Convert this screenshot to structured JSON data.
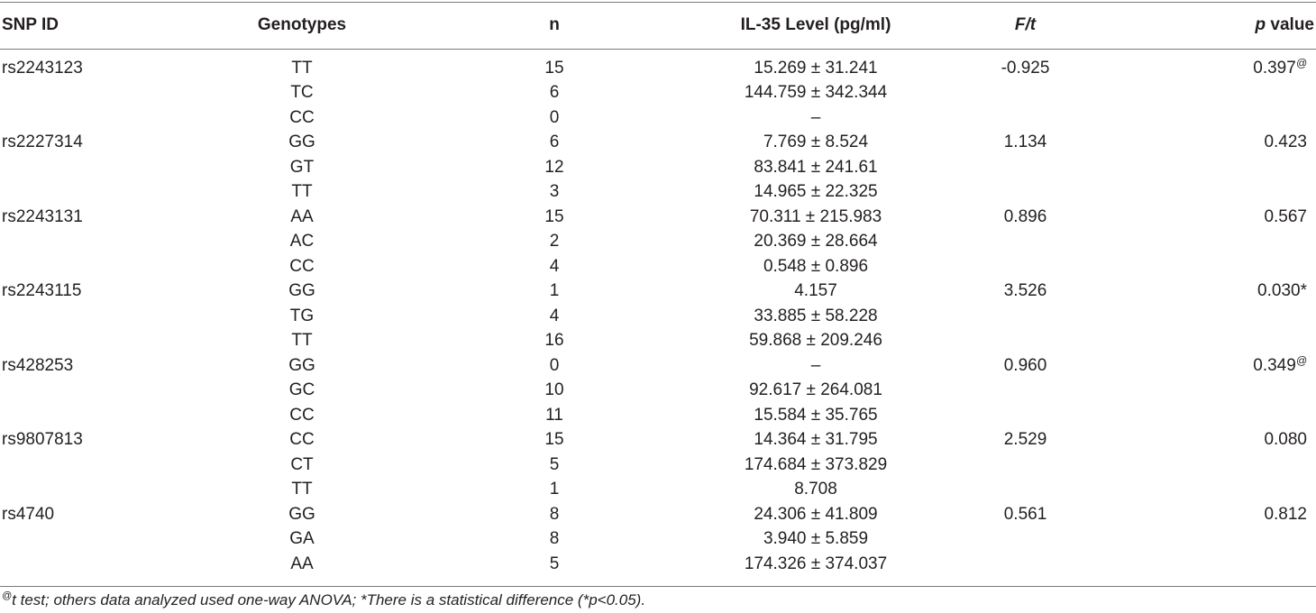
{
  "table": {
    "headers": {
      "snp_id": "SNP ID",
      "genotypes": "Genotypes",
      "n": "n",
      "il35": "IL-35 Level (pg/ml)",
      "ft": "F/t",
      "p_italic": "p",
      "p_rest": " value"
    },
    "groups": [
      {
        "snp": "rs2243123",
        "f": "-0.925",
        "p": "0.397",
        "p_mark": "@",
        "rows": [
          {
            "genotype": "TT",
            "n": "15",
            "il35": "15.269 ± 31.241"
          },
          {
            "genotype": "TC",
            "n": "6",
            "il35": "144.759 ± 342.344"
          },
          {
            "genotype": "CC",
            "n": "0",
            "il35": "–"
          }
        ]
      },
      {
        "snp": "rs2227314",
        "f": "1.134",
        "p": "0.423",
        "p_mark": "",
        "rows": [
          {
            "genotype": "GG",
            "n": "6",
            "il35": "7.769 ± 8.524"
          },
          {
            "genotype": "GT",
            "n": "12",
            "il35": "83.841 ± 241.61"
          },
          {
            "genotype": "TT",
            "n": "3",
            "il35": "14.965 ± 22.325"
          }
        ]
      },
      {
        "snp": "rs2243131",
        "f": "0.896",
        "p": "0.567",
        "p_mark": "",
        "rows": [
          {
            "genotype": "AA",
            "n": "15",
            "il35": "70.311 ± 215.983"
          },
          {
            "genotype": "AC",
            "n": "2",
            "il35": "20.369 ± 28.664"
          },
          {
            "genotype": "CC",
            "n": "4",
            "il35": "0.548 ± 0.896"
          }
        ]
      },
      {
        "snp": "rs2243115",
        "f": "3.526",
        "p": "0.030*",
        "p_mark": "",
        "rows": [
          {
            "genotype": "GG",
            "n": "1",
            "il35": "4.157"
          },
          {
            "genotype": "TG",
            "n": "4",
            "il35": "33.885 ± 58.228"
          },
          {
            "genotype": "TT",
            "n": "16",
            "il35": "59.868 ± 209.246"
          }
        ]
      },
      {
        "snp": "rs428253",
        "f": "0.960",
        "p": "0.349",
        "p_mark": "@",
        "rows": [
          {
            "genotype": "GG",
            "n": "0",
            "il35": "–"
          },
          {
            "genotype": "GC",
            "n": "10",
            "il35": "92.617 ± 264.081"
          },
          {
            "genotype": "CC",
            "n": "11",
            "il35": "15.584 ± 35.765"
          }
        ]
      },
      {
        "snp": "rs9807813",
        "f": "2.529",
        "p": "0.080",
        "p_mark": "",
        "rows": [
          {
            "genotype": "CC",
            "n": "15",
            "il35": "14.364 ± 31.795"
          },
          {
            "genotype": "CT",
            "n": "5",
            "il35": "174.684 ± 373.829"
          },
          {
            "genotype": "TT",
            "n": "1",
            "il35": "8.708"
          }
        ]
      },
      {
        "snp": "rs4740",
        "f": "0.561",
        "p": "0.812",
        "p_mark": "",
        "rows": [
          {
            "genotype": "GG",
            "n": "8",
            "il35": "24.306 ± 41.809"
          },
          {
            "genotype": "GA",
            "n": "8",
            "il35": "3.940 ± 5.859"
          },
          {
            "genotype": "AA",
            "n": "5",
            "il35": "174.326 ± 374.037"
          }
        ]
      }
    ]
  },
  "footnote": {
    "mark": "@",
    "text": "t test; others data analyzed used one-way ANOVA; *There is a statistical difference (*p<0.05)."
  }
}
